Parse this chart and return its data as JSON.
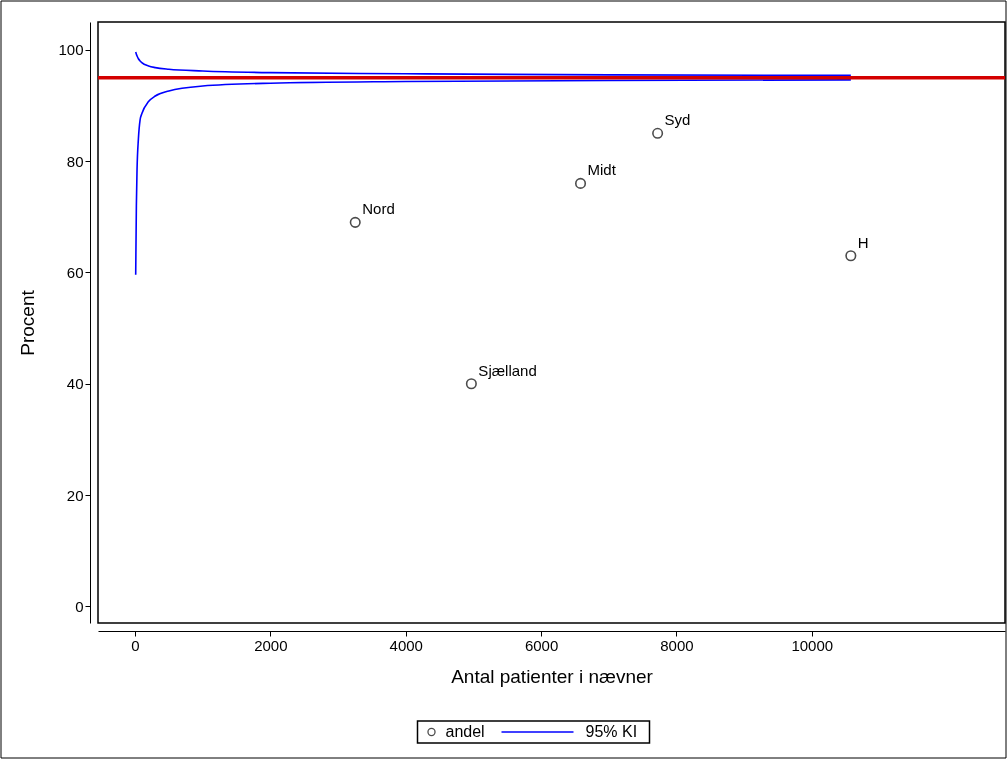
{
  "chart_data": {
    "type": "scatter",
    "xlabel": "Antal patienter i nævner",
    "ylabel": "Procent",
    "xlim": [
      -547,
      12855
    ],
    "ylim": [
      -3,
      105
    ],
    "xticks": [
      0,
      2000,
      4000,
      6000,
      8000,
      10000
    ],
    "yticks": [
      0,
      20,
      40,
      60,
      80,
      100
    ],
    "grid": false,
    "legend": "bottom",
    "series": [
      {
        "name": "andel",
        "marker": "circle",
        "color": "#000000",
        "x": [
          3254,
          4970,
          6583,
          7722,
          10577
        ],
        "values": [
          69,
          40,
          76,
          85,
          63
        ]
      },
      {
        "name": "95% KI",
        "type": "line",
        "line_style": "solid",
        "color": "#0000ff",
        "x": [
          10,
          20,
          30,
          50,
          75,
          100,
          200,
          300,
          500,
          1000,
          2000,
          4000,
          7000,
          10577
        ],
        "values": [
          59.6,
          72,
          78.5,
          84,
          87.4,
          88.5,
          90.7,
          91.7,
          92.6,
          93.5,
          94,
          94.3,
          94.5,
          94.6
        ]
      },
      {
        "type": "line",
        "line_style": "solid",
        "color": "#0000ff",
        "x": [
          10,
          20,
          30,
          50,
          75,
          100,
          200,
          300,
          500,
          1000,
          2000,
          4000,
          7000,
          10577
        ],
        "values": [
          99.6,
          99.2,
          98.9,
          98.4,
          98,
          97.7,
          97.1,
          96.8,
          96.5,
          96.2,
          95.9,
          95.7,
          95.5,
          95.4
        ]
      }
    ],
    "ref_lines": [
      {
        "axis": "y",
        "value": 95,
        "color": "#d40000"
      }
    ],
    "annotations": [
      {
        "text": "Nord",
        "x": 3254,
        "y": 69
      },
      {
        "text": "Sjælland",
        "x": 4970,
        "y": 40
      },
      {
        "text": "Midt",
        "x": 6583,
        "y": 76
      },
      {
        "text": "Syd",
        "x": 7722,
        "y": 85
      },
      {
        "text": "H",
        "x": 10577,
        "y": 63
      }
    ]
  }
}
